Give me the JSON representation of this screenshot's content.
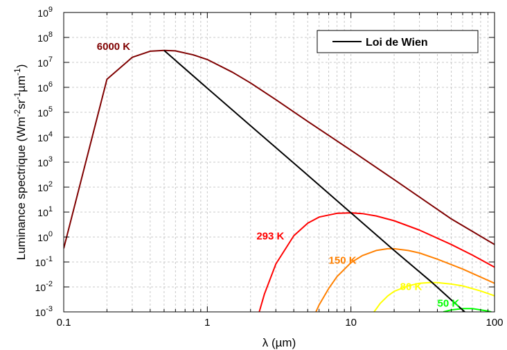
{
  "chart_data": {
    "type": "line",
    "xlabel": "λ (µm)",
    "ylabel_main": "Luminance spectrique (Wm",
    "ylabel_parts": [
      {
        "text": "Luminance spectrique (Wm",
        "sup": false
      },
      {
        "text": "-2",
        "sup": true
      },
      {
        "text": "sr",
        "sup": false
      },
      {
        "text": "-1",
        "sup": true
      },
      {
        "text": "µm",
        "sup": false
      },
      {
        "text": "-1",
        "sup": true
      },
      {
        "text": ")",
        "sup": false
      }
    ],
    "x_scale": "log",
    "y_scale": "log",
    "xlim": [
      0.1,
      100
    ],
    "ylim": [
      0.001,
      1000000000
    ],
    "x_ticks": [
      {
        "value": 0.1,
        "label": "0.1"
      },
      {
        "value": 1,
        "label": "1"
      },
      {
        "value": 10,
        "label": "10"
      },
      {
        "value": 100,
        "label": "100"
      }
    ],
    "y_ticks": [
      {
        "value": 0.001,
        "base": "10",
        "exp": "-3"
      },
      {
        "value": 0.01,
        "base": "10",
        "exp": "-2"
      },
      {
        "value": 0.1,
        "base": "10",
        "exp": "-1"
      },
      {
        "value": 1,
        "base": "10",
        "exp": "0"
      },
      {
        "value": 10,
        "base": "10",
        "exp": "1"
      },
      {
        "value": 100,
        "base": "10",
        "exp": "2"
      },
      {
        "value": 1000,
        "base": "10",
        "exp": "3"
      },
      {
        "value": 10000,
        "base": "10",
        "exp": "4"
      },
      {
        "value": 100000,
        "base": "10",
        "exp": "5"
      },
      {
        "value": 1000000,
        "base": "10",
        "exp": "6"
      },
      {
        "value": 10000000,
        "base": "10",
        "exp": "7"
      },
      {
        "value": 100000000,
        "base": "10",
        "exp": "8"
      },
      {
        "value": 1000000000,
        "base": "10",
        "exp": "9"
      }
    ],
    "grid": true,
    "legend": {
      "position": "top-right",
      "entries": [
        {
          "label": "Loi de Wien",
          "color": "#000000"
        }
      ]
    },
    "series": [
      {
        "name": "6000 K",
        "temperature": 6000,
        "color": "#7f0000",
        "label_at": [
          0.17,
          32000000.0
        ],
        "points": [
          [
            0.1,
            0.35
          ],
          [
            0.2,
            2100000.0
          ],
          [
            0.3,
            16000000.0
          ],
          [
            0.4,
            28000000.0
          ],
          [
            0.5,
            30000000.0
          ],
          [
            0.6,
            29000000.0
          ],
          [
            0.8,
            20000000.0
          ],
          [
            1,
            13000000.0
          ],
          [
            1.5,
            4000000.0
          ],
          [
            2,
            1500000.0
          ],
          [
            3,
            320000.0
          ],
          [
            5,
            43000.0
          ],
          [
            10,
            3000
          ],
          [
            20,
            200
          ],
          [
            50,
            5.3
          ],
          [
            100,
            0.5
          ]
        ]
      },
      {
        "name": "293 K",
        "temperature": 293,
        "color": "#ff0000",
        "label_at": [
          2.2,
          0.8
        ],
        "points": [
          [
            2.3,
            0.001
          ],
          [
            2.5,
            0.0052
          ],
          [
            3,
            0.083
          ],
          [
            4,
            1.13
          ],
          [
            5,
            3.6
          ],
          [
            6,
            6.3
          ],
          [
            8,
            8.9
          ],
          [
            10,
            9.3
          ],
          [
            12,
            8.7
          ],
          [
            15,
            7.0
          ],
          [
            20,
            4.5
          ],
          [
            30,
            1.9
          ],
          [
            50,
            0.5
          ],
          [
            70,
            0.19
          ],
          [
            100,
            0.062
          ]
        ]
      },
      {
        "name": "150 K",
        "temperature": 150,
        "color": "#ff8000",
        "label_at": [
          7.0,
          0.085
        ],
        "points": [
          [
            5.7,
            0.001
          ],
          [
            6,
            0.0019
          ],
          [
            7,
            0.0087
          ],
          [
            8,
            0.026
          ],
          [
            10,
            0.094
          ],
          [
            12,
            0.18
          ],
          [
            15,
            0.29
          ],
          [
            18,
            0.34
          ],
          [
            20,
            0.34
          ],
          [
            25,
            0.29
          ],
          [
            30,
            0.23
          ],
          [
            40,
            0.13
          ],
          [
            60,
            0.052
          ],
          [
            100,
            0.014
          ]
        ]
      },
      {
        "name": "80 K",
        "temperature": 80,
        "color": "#ffff00",
        "label_at": [
          22,
          0.0075
        ],
        "points": [
          [
            14.5,
            0.001
          ],
          [
            16,
            0.0022
          ],
          [
            18,
            0.0043
          ],
          [
            20,
            0.0067
          ],
          [
            25,
            0.011
          ],
          [
            30,
            0.014
          ],
          [
            35,
            0.015
          ],
          [
            40,
            0.015
          ],
          [
            50,
            0.013
          ],
          [
            60,
            0.011
          ],
          [
            80,
            0.0069
          ],
          [
            100,
            0.0044
          ]
        ]
      },
      {
        "name": "50 K",
        "temperature": 50,
        "color": "#00ff00",
        "label_at": [
          40,
          0.0016
        ],
        "points": [
          [
            44,
            0.001
          ],
          [
            50,
            0.0012
          ],
          [
            60,
            0.00136
          ],
          [
            70,
            0.00135
          ],
          [
            80,
            0.0012
          ],
          [
            90,
            0.00107
          ],
          [
            95,
            0.001
          ]
        ]
      },
      {
        "name": "Loi de Wien",
        "color": "#000000",
        "label_at": null,
        "points": [
          [
            0.5,
            30000000.0
          ],
          [
            1,
            920000.0
          ],
          [
            2,
            29000.0
          ],
          [
            5,
            300
          ],
          [
            10,
            9.3
          ],
          [
            20,
            0.29
          ],
          [
            37,
            0.0145
          ],
          [
            50,
            0.003
          ],
          [
            62,
            0.001
          ]
        ]
      }
    ]
  }
}
